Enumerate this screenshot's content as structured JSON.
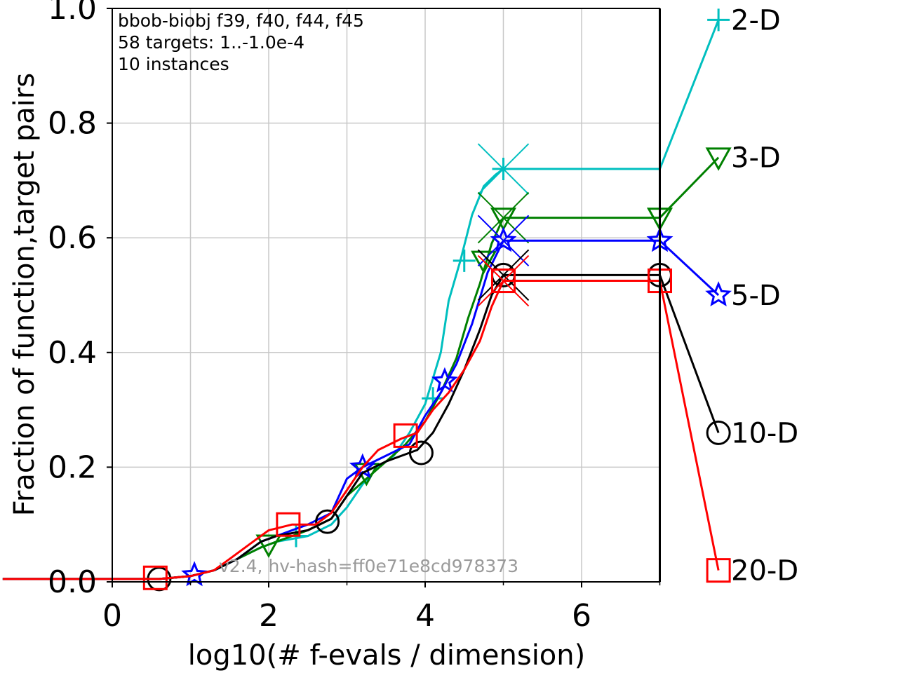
{
  "chart_data": {
    "type": "line",
    "info_lines": [
      "bbob-biobj f39, f40, f44, f45",
      "58 targets: 1..-1.0e-4",
      "10 instances"
    ],
    "watermark": "v2.4, hv-hash=ff0e71e8cd978373",
    "xlabel": "log10(# f-evals / dimension)",
    "ylabel": "Fraction of function,target pairs",
    "xlim": [
      -1.4,
      7
    ],
    "ylim": [
      0,
      1
    ],
    "xticks": [
      0,
      2,
      4,
      6
    ],
    "xtick_labels": [
      "0",
      "2",
      "4",
      "6"
    ],
    "yticks": [
      0,
      0.2,
      0.4,
      0.6,
      0.8,
      1.0
    ],
    "ytick_labels": [
      "0.0",
      "0.2",
      "0.4",
      "0.6",
      "0.8",
      "1.0"
    ],
    "grid": true,
    "budget_line_x": 7,
    "series": [
      {
        "name": "2-D",
        "color": "#00bfbf",
        "marker": "plus",
        "points": [
          [
            -1.4,
            0.005
          ],
          [
            0.6,
            0.005
          ],
          [
            1.0,
            0.01
          ],
          [
            1.3,
            0.02
          ],
          [
            1.6,
            0.04
          ],
          [
            1.9,
            0.06
          ],
          [
            2.1,
            0.07
          ],
          [
            2.5,
            0.08
          ],
          [
            2.8,
            0.1
          ],
          [
            3.0,
            0.13
          ],
          [
            3.2,
            0.17
          ],
          [
            3.4,
            0.2
          ],
          [
            3.6,
            0.22
          ],
          [
            3.8,
            0.26
          ],
          [
            4.0,
            0.31
          ],
          [
            4.2,
            0.4
          ],
          [
            4.3,
            0.49
          ],
          [
            4.45,
            0.56
          ],
          [
            4.6,
            0.64
          ],
          [
            4.75,
            0.69
          ],
          [
            4.9,
            0.71
          ],
          [
            5.0,
            0.72
          ],
          [
            7.0,
            0.72
          ],
          [
            7.75,
            0.98
          ]
        ],
        "markers": [
          [
            2.35,
            0.08
          ],
          [
            4.1,
            0.32
          ],
          [
            4.5,
            0.56
          ],
          [
            5.0,
            0.72
          ],
          [
            7.75,
            0.98
          ]
        ],
        "end_cross": [
          5.0,
          0.72
        ],
        "end_label_y": 0.98
      },
      {
        "name": "3-D",
        "color": "#008000",
        "marker": "triangle-down",
        "points": [
          [
            -1.4,
            0.005
          ],
          [
            0.6,
            0.005
          ],
          [
            1.0,
            0.01
          ],
          [
            1.3,
            0.02
          ],
          [
            1.6,
            0.04
          ],
          [
            1.9,
            0.06
          ],
          [
            2.1,
            0.07
          ],
          [
            2.5,
            0.09
          ],
          [
            2.8,
            0.11
          ],
          [
            3.0,
            0.15
          ],
          [
            3.25,
            0.18
          ],
          [
            3.5,
            0.21
          ],
          [
            3.75,
            0.24
          ],
          [
            4.0,
            0.28
          ],
          [
            4.2,
            0.33
          ],
          [
            4.4,
            0.39
          ],
          [
            4.55,
            0.46
          ],
          [
            4.7,
            0.52
          ],
          [
            4.85,
            0.59
          ],
          [
            5.0,
            0.635
          ],
          [
            7.0,
            0.635
          ],
          [
            7.75,
            0.74
          ]
        ],
        "markers": [
          [
            2.0,
            0.065
          ],
          [
            3.25,
            0.19
          ],
          [
            4.75,
            0.56
          ],
          [
            5.0,
            0.635
          ],
          [
            7.0,
            0.635
          ],
          [
            7.75,
            0.74
          ]
        ],
        "end_cross": [
          5.0,
          0.635
        ],
        "end_label_y": 0.74
      },
      {
        "name": "5-D",
        "color": "#0000ff",
        "marker": "star",
        "points": [
          [
            -1.4,
            0.005
          ],
          [
            0.6,
            0.005
          ],
          [
            1.0,
            0.01
          ],
          [
            1.3,
            0.02
          ],
          [
            1.6,
            0.04
          ],
          [
            1.9,
            0.07
          ],
          [
            2.1,
            0.08
          ],
          [
            2.5,
            0.1
          ],
          [
            2.8,
            0.12
          ],
          [
            3.0,
            0.18
          ],
          [
            3.2,
            0.2
          ],
          [
            3.5,
            0.22
          ],
          [
            3.8,
            0.24
          ],
          [
            4.0,
            0.29
          ],
          [
            4.2,
            0.33
          ],
          [
            4.4,
            0.38
          ],
          [
            4.6,
            0.45
          ],
          [
            4.8,
            0.54
          ],
          [
            5.0,
            0.595
          ],
          [
            7.0,
            0.595
          ],
          [
            7.75,
            0.5
          ]
        ],
        "markers": [
          [
            1.05,
            0.012
          ],
          [
            3.2,
            0.2
          ],
          [
            4.25,
            0.35
          ],
          [
            5.0,
            0.595
          ],
          [
            7.0,
            0.595
          ],
          [
            7.75,
            0.5
          ]
        ],
        "end_cross": [
          5.0,
          0.595
        ],
        "end_label_y": 0.5
      },
      {
        "name": "10-D",
        "color": "#000000",
        "marker": "circle",
        "points": [
          [
            -1.4,
            0.005
          ],
          [
            0.6,
            0.005
          ],
          [
            1.0,
            0.01
          ],
          [
            1.3,
            0.02
          ],
          [
            1.6,
            0.04
          ],
          [
            1.9,
            0.07
          ],
          [
            2.1,
            0.08
          ],
          [
            2.5,
            0.09
          ],
          [
            2.8,
            0.11
          ],
          [
            3.0,
            0.15
          ],
          [
            3.2,
            0.19
          ],
          [
            3.5,
            0.21
          ],
          [
            3.9,
            0.23
          ],
          [
            4.1,
            0.26
          ],
          [
            4.3,
            0.31
          ],
          [
            4.5,
            0.37
          ],
          [
            4.7,
            0.44
          ],
          [
            4.85,
            0.5
          ],
          [
            5.0,
            0.535
          ],
          [
            7.0,
            0.535
          ],
          [
            7.75,
            0.26
          ]
        ],
        "markers": [
          [
            0.6,
            0.005
          ],
          [
            2.75,
            0.105
          ],
          [
            3.95,
            0.225
          ],
          [
            5.0,
            0.535
          ],
          [
            7.0,
            0.535
          ],
          [
            7.75,
            0.26
          ]
        ],
        "end_cross": [
          5.0,
          0.535
        ],
        "end_label_y": 0.26
      },
      {
        "name": "20-D",
        "color": "#ff0000",
        "marker": "square",
        "points": [
          [
            -1.4,
            0.005
          ],
          [
            0.6,
            0.005
          ],
          [
            1.0,
            0.01
          ],
          [
            1.3,
            0.02
          ],
          [
            1.5,
            0.04
          ],
          [
            1.8,
            0.07
          ],
          [
            2.0,
            0.09
          ],
          [
            2.3,
            0.1
          ],
          [
            2.6,
            0.1
          ],
          [
            2.8,
            0.12
          ],
          [
            3.0,
            0.16
          ],
          [
            3.2,
            0.2
          ],
          [
            3.4,
            0.23
          ],
          [
            3.7,
            0.25
          ],
          [
            3.9,
            0.26
          ],
          [
            4.1,
            0.3
          ],
          [
            4.3,
            0.33
          ],
          [
            4.5,
            0.37
          ],
          [
            4.7,
            0.42
          ],
          [
            4.85,
            0.48
          ],
          [
            5.0,
            0.525
          ],
          [
            7.0,
            0.525
          ],
          [
            7.75,
            0.02
          ]
        ],
        "markers": [
          [
            0.55,
            0.007
          ],
          [
            2.25,
            0.1
          ],
          [
            3.75,
            0.255
          ],
          [
            5.0,
            0.525
          ],
          [
            7.0,
            0.525
          ],
          [
            7.75,
            0.02
          ]
        ],
        "end_cross": [
          5.0,
          0.525
        ],
        "end_label_y": 0.02
      }
    ]
  }
}
